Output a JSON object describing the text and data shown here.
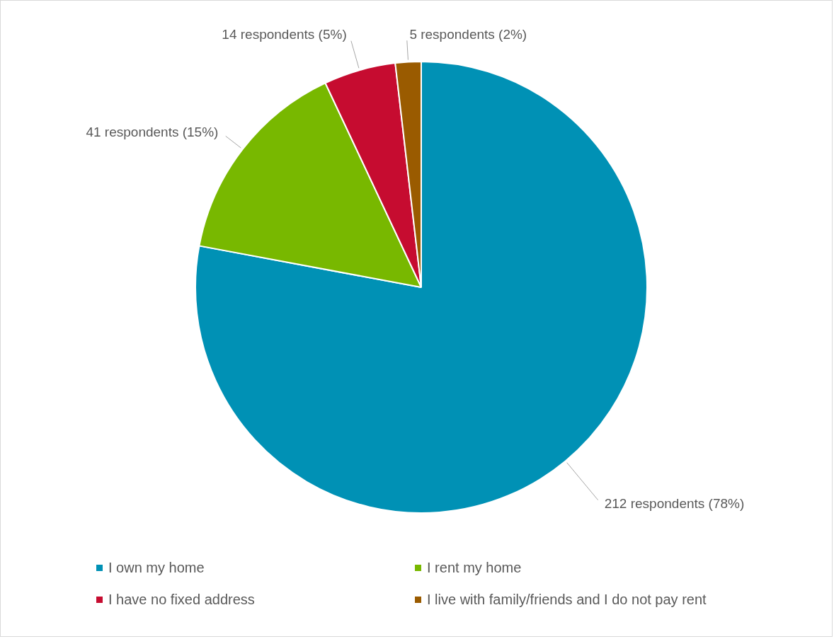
{
  "chart_data": {
    "type": "pie",
    "categories": [
      "I own my home",
      "I rent my home",
      "I have no fixed address",
      "I live with family/friends and I do not pay rent"
    ],
    "values": [
      212,
      41,
      14,
      5
    ],
    "colors": [
      "#0091b5",
      "#78b800",
      "#c60c30",
      "#9a5b00"
    ],
    "value_labels": [
      "212 respondents (78%)",
      "41 respondents (15%)",
      "14 respondents (5%)",
      "5 respondents (2%)"
    ],
    "legend": "bottom"
  }
}
